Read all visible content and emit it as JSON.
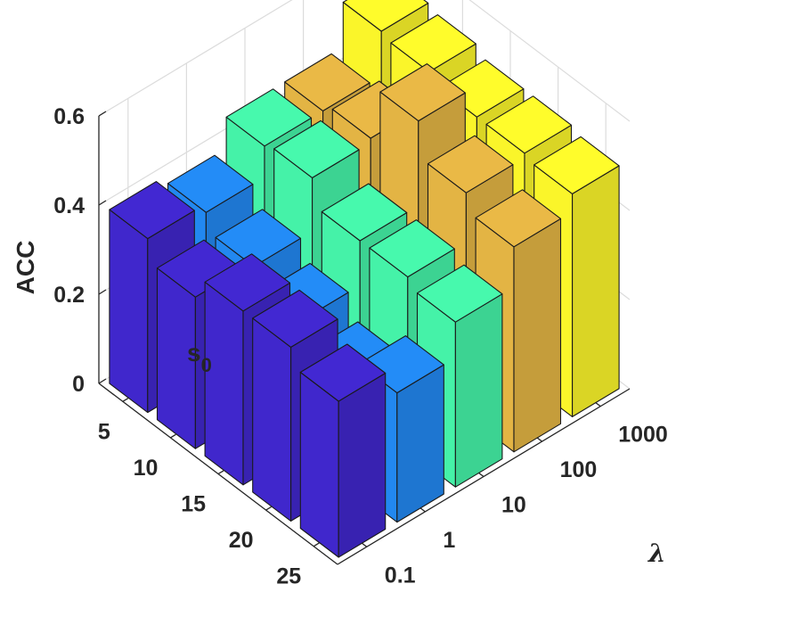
{
  "chart_data": {
    "type": "bar3d",
    "zlabel": "ACC",
    "xlabel": "s",
    "xlabel_subscript": "0",
    "ylabel": "λ",
    "x_categories": [
      "5",
      "10",
      "15",
      "20",
      "25"
    ],
    "y_categories": [
      "0.1",
      "1",
      "10",
      "100",
      "1000"
    ],
    "z_ticks": [
      "0",
      "0.2",
      "0.4",
      "0.6"
    ],
    "zlim": [
      0,
      0.6
    ],
    "grid": true,
    "series": [
      {
        "values": [
          0.39,
          0.34,
          0.39,
          0.39,
          0.35
        ],
        "color": "#4027CC"
      },
      {
        "values": [
          0.37,
          0.33,
          0.29,
          0.24,
          0.29
        ],
        "color": "#2288F0"
      },
      {
        "values": [
          0.44,
          0.45,
          0.39,
          0.39,
          0.37
        ],
        "color": "#45F2A8"
      },
      {
        "values": [
          0.44,
          0.46,
          0.58,
          0.5,
          0.46
        ],
        "color": "#E3B444"
      },
      {
        "values": [
          0.54,
          0.53,
          0.51,
          0.51,
          0.5
        ],
        "color": "#FAF52A"
      }
    ]
  }
}
